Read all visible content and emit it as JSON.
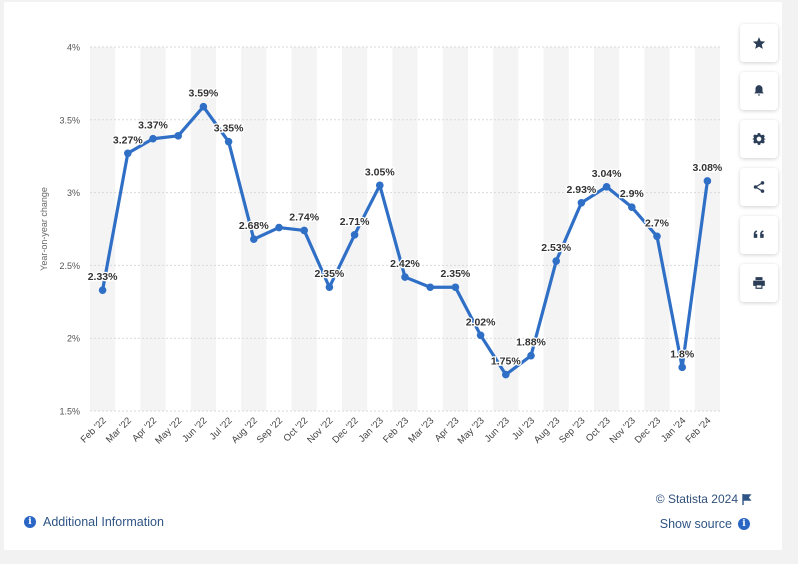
{
  "chart_data": {
    "type": "line",
    "ylabel": "Year-on-year change",
    "yticks": [
      "1.5%",
      "2%",
      "2.5%",
      "3%",
      "3.5%",
      "4%"
    ],
    "ylim": [
      1.5,
      4
    ],
    "grid": true,
    "categories": [
      "Feb '22",
      "Mar '22",
      "Apr '22",
      "May '22",
      "Jun '22",
      "Jul '22",
      "Aug '22",
      "Sep '22",
      "Oct '22",
      "Nov '22",
      "Dec '22",
      "Jan '23",
      "Feb '23",
      "Mar '23",
      "Apr '23",
      "May '23",
      "Jun '23",
      "Jul '23",
      "Aug '23",
      "Sep '23",
      "Oct '23",
      "Nov '23",
      "Dec '23",
      "Jan '24",
      "Feb '24"
    ],
    "series": [
      {
        "values": [
          2.33,
          3.27,
          3.37,
          3.39,
          3.59,
          3.35,
          2.68,
          2.76,
          2.74,
          2.35,
          2.71,
          3.05,
          2.42,
          2.35,
          2.35,
          2.02,
          1.75,
          1.88,
          2.53,
          2.93,
          3.04,
          2.9,
          2.7,
          1.8,
          3.08
        ],
        "labels": [
          "2.33%",
          "3.27%",
          "3.37%",
          "",
          "3.59%",
          "3.35%",
          "2.68%",
          "",
          "2.74%",
          "2.35%",
          "2.71%",
          "3.05%",
          "2.42%",
          "",
          "2.35%",
          "2.02%",
          "1.75%",
          "1.88%",
          "2.53%",
          "2.93%",
          "3.04%",
          "2.9%",
          "2.7%",
          "1.8%",
          "3.08%"
        ]
      }
    ],
    "colors": {
      "line": "#2f6fc6",
      "grid": "#d9d9d9",
      "band": "#f4f4f4"
    }
  },
  "toolbar": [
    {
      "icon": "star-icon"
    },
    {
      "icon": "bell-icon"
    },
    {
      "icon": "gear-icon"
    },
    {
      "icon": "share-icon"
    },
    {
      "icon": "quote-icon"
    },
    {
      "icon": "print-icon"
    }
  ],
  "footer": {
    "credit": "© Statista 2024",
    "additional_info": "Additional Information",
    "show_source": "Show source"
  }
}
